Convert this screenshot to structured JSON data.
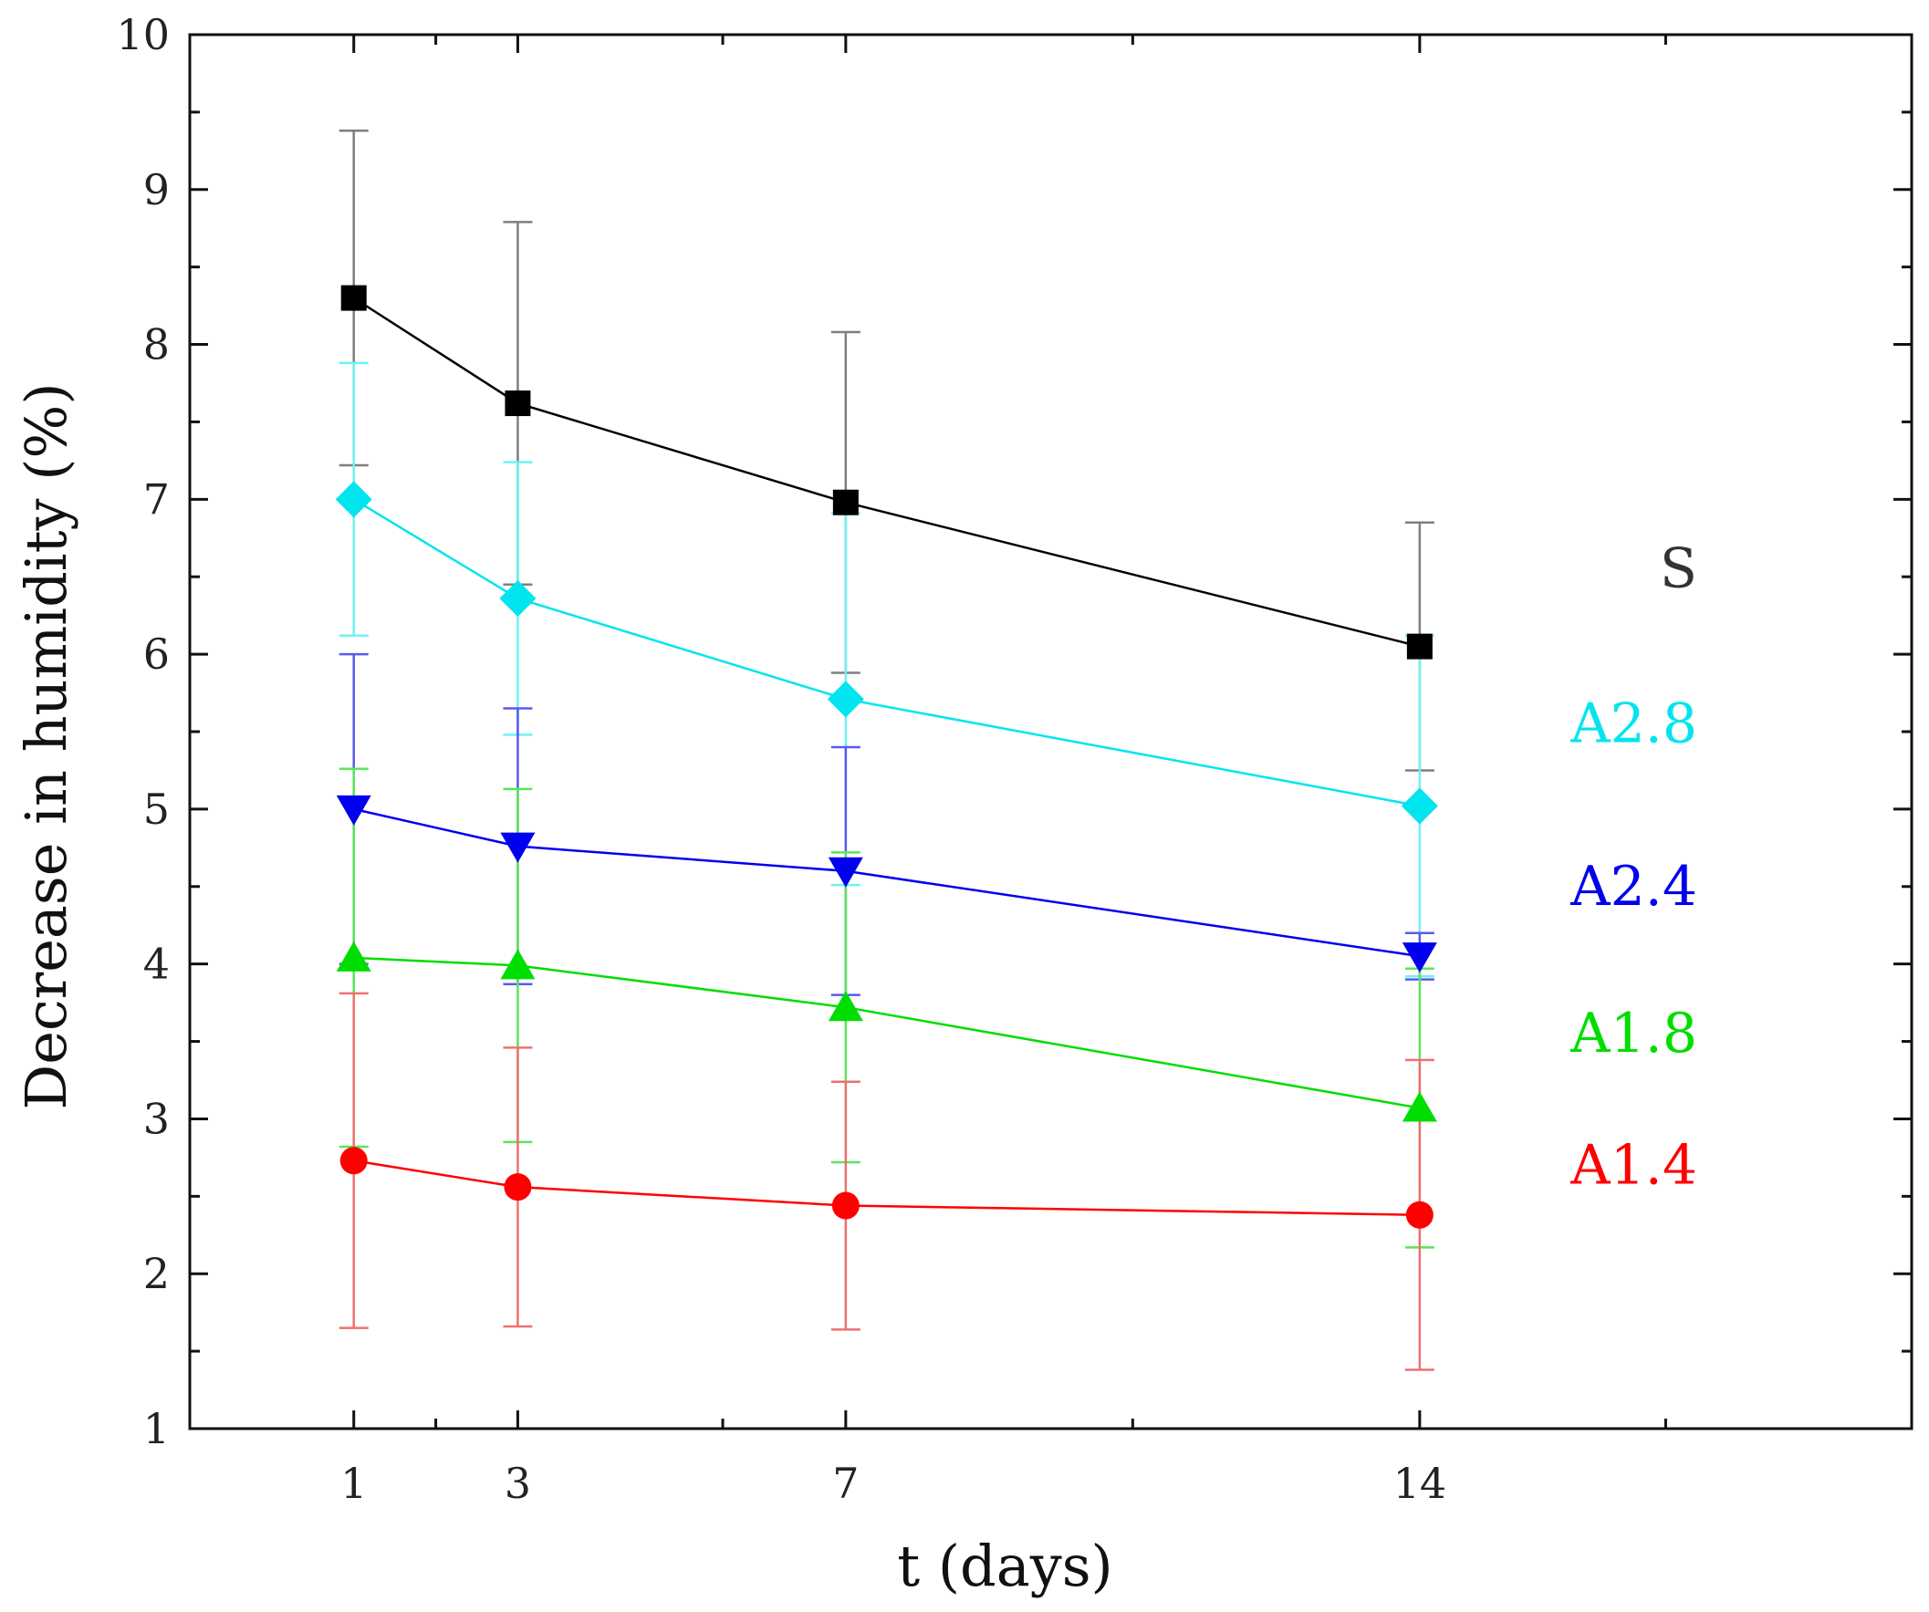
{
  "chart_data": {
    "type": "line",
    "title": "",
    "xlabel": "t (days)",
    "ylabel": "Decrease in humidity (%)",
    "xlim": [
      -1,
      20
    ],
    "ylim": [
      1,
      10
    ],
    "x": [
      1,
      3,
      7,
      14
    ],
    "x_tick_labels": [
      "1",
      "3",
      "7",
      "14"
    ],
    "y_ticks": [
      1,
      2,
      3,
      4,
      5,
      6,
      7,
      8,
      9,
      10
    ],
    "y_tick_labels": [
      "1",
      "2",
      "3",
      "4",
      "5",
      "6",
      "7",
      "8",
      "9",
      "10"
    ],
    "grid": false,
    "legend": "inline labels at right end of each series",
    "series": [
      {
        "name": "S",
        "color": "#000000",
        "error_color": "#7f7f7f",
        "marker": "square",
        "values": [
          8.3,
          7.62,
          6.98,
          6.05
        ],
        "errors": [
          1.08,
          1.17,
          1.1,
          0.8
        ]
      },
      {
        "name": "A2.8",
        "color": "#00e5ee",
        "error_color": "#6ff2f2",
        "marker": "diamond",
        "values": [
          7.0,
          6.36,
          5.71,
          5.02
        ],
        "errors": [
          0.88,
          0.88,
          1.2,
          1.1
        ]
      },
      {
        "name": "A2.4",
        "color": "#0000ee",
        "error_color": "#5a5aee",
        "marker": "triangle-down",
        "values": [
          5.0,
          4.76,
          4.6,
          4.05
        ],
        "errors": [
          1.0,
          0.89,
          0.8,
          0.15
        ]
      },
      {
        "name": "A1.8",
        "color": "#00dd00",
        "error_color": "#5ae65a",
        "marker": "triangle-up",
        "values": [
          4.04,
          3.99,
          3.72,
          3.07
        ],
        "errors": [
          1.22,
          1.14,
          1.0,
          0.9
        ]
      },
      {
        "name": "A1.4",
        "color": "#ff0000",
        "error_color": "#f07070",
        "marker": "circle",
        "values": [
          2.73,
          2.56,
          2.44,
          2.38
        ],
        "errors": [
          1.08,
          0.9,
          0.8,
          1.0
        ]
      }
    ]
  }
}
